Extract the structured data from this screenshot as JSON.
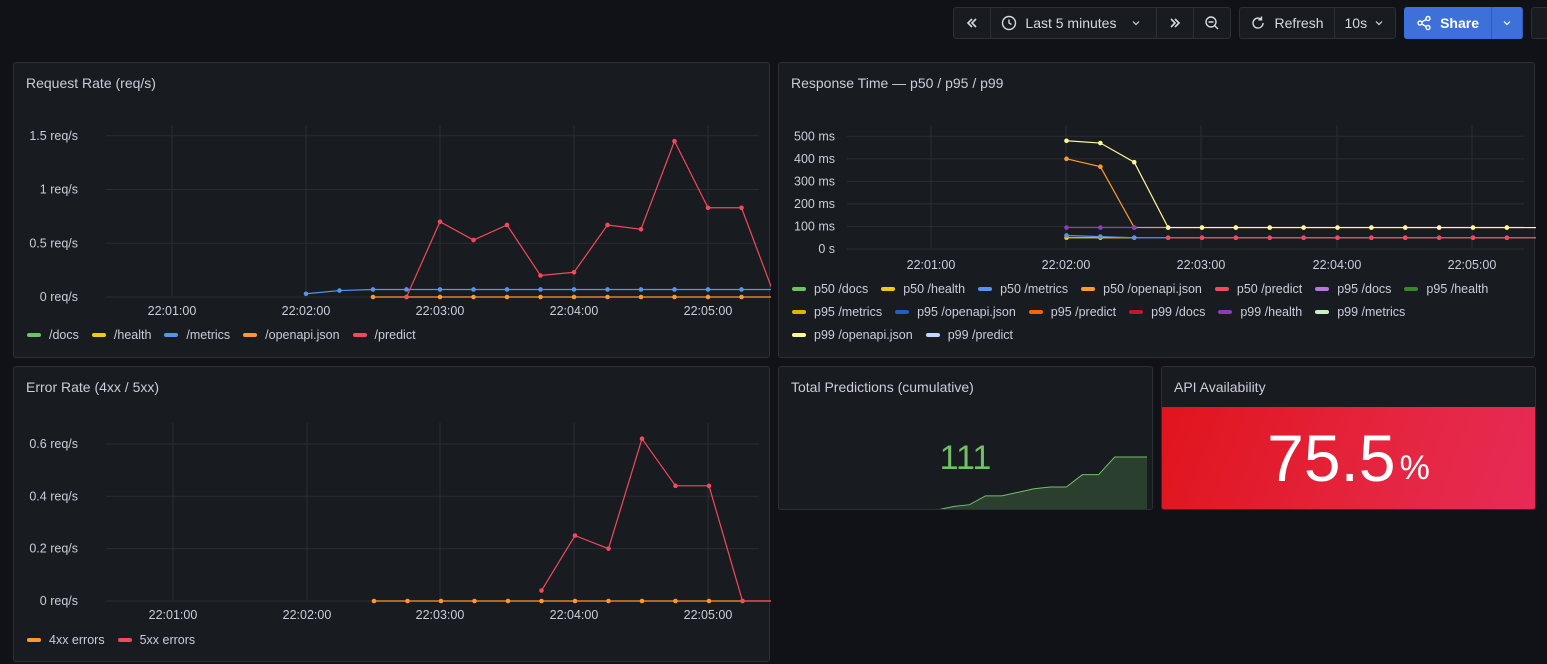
{
  "toolbar": {
    "time_range": "Last 5 minutes",
    "refresh_label": "Refresh",
    "refresh_interval": "10s",
    "share_label": "Share"
  },
  "panels": {
    "request_rate": {
      "title": "Request Rate (req/s)",
      "legend": [
        {
          "label": "/docs",
          "color": "#73bf69"
        },
        {
          "label": "/health",
          "color": "#f2cc0c"
        },
        {
          "label": "/metrics",
          "color": "#5794f2"
        },
        {
          "label": "/openapi.json",
          "color": "#ff9830"
        },
        {
          "label": "/predict",
          "color": "#f2495c"
        }
      ]
    },
    "response_time": {
      "title": "Response Time — p50 / p95 / p99",
      "legend": [
        {
          "label": "p50 /docs",
          "color": "#73bf69"
        },
        {
          "label": "p50 /health",
          "color": "#f2cc0c"
        },
        {
          "label": "p50 /metrics",
          "color": "#5794f2"
        },
        {
          "label": "p50 /openapi.json",
          "color": "#ff9830"
        },
        {
          "label": "p50 /predict",
          "color": "#f2495c"
        },
        {
          "label": "p95 /docs",
          "color": "#b877d9"
        },
        {
          "label": "p95 /health",
          "color": "#37872d"
        },
        {
          "label": "p95 /metrics",
          "color": "#e0b400"
        },
        {
          "label": "p95 /openapi.json",
          "color": "#1f60c4"
        },
        {
          "label": "p95 /predict",
          "color": "#fa6400"
        },
        {
          "label": "p99 /docs",
          "color": "#c4162a"
        },
        {
          "label": "p99 /health",
          "color": "#8f3bb8"
        },
        {
          "label": "p99 /metrics",
          "color": "#c8f2c2"
        },
        {
          "label": "p99 /openapi.json",
          "color": "#fff899"
        },
        {
          "label": "p99 /predict",
          "color": "#c0d8ff"
        }
      ]
    },
    "error_rate": {
      "title": "Error Rate (4xx / 5xx)",
      "legend": [
        {
          "label": "4xx errors",
          "color": "#ff9830"
        },
        {
          "label": "5xx errors",
          "color": "#f2495c"
        }
      ]
    },
    "total_predictions": {
      "title": "Total Predictions (cumulative)",
      "value": "111"
    },
    "availability": {
      "title": "API Availability",
      "value": "75.5",
      "unit": "%"
    }
  },
  "chart_data": [
    {
      "type": "line",
      "title": "Request Rate (req/s)",
      "x_ticks": [
        "22:01:00",
        "22:02:00",
        "22:03:00",
        "22:04:00",
        "22:05:00"
      ],
      "y_ticks": [
        "0 req/s",
        "0.5 req/s",
        "1 req/s",
        "1.5 req/s"
      ],
      "ylim": [
        0,
        1.6
      ],
      "x_range_seconds": [
        0,
        330
      ],
      "series": [
        {
          "name": "/metrics",
          "color": "#5794f2",
          "x": [
            120,
            135,
            150,
            165,
            180,
            195,
            210,
            225,
            240,
            255,
            270,
            285,
            300,
            315,
            330
          ],
          "values": [
            0.03,
            0.06,
            0.07,
            0.07,
            0.07,
            0.07,
            0.07,
            0.07,
            0.07,
            0.07,
            0.07,
            0.07,
            0.07,
            0.07,
            0.07
          ]
        },
        {
          "name": "/openapi.json",
          "color": "#ff9830",
          "x": [
            150,
            165,
            180,
            195,
            210,
            225,
            240,
            255,
            270,
            285,
            300,
            315,
            330
          ],
          "values": [
            0,
            0,
            0,
            0,
            0,
            0,
            0,
            0,
            0,
            0,
            0,
            0,
            0
          ]
        },
        {
          "name": "/predict",
          "color": "#f2495c",
          "x": [
            165,
            180,
            195,
            210,
            225,
            240,
            255,
            270,
            285,
            300,
            315,
            330
          ],
          "values": [
            0,
            0.7,
            0.53,
            0.67,
            0.2,
            0.23,
            0.67,
            0.63,
            1.45,
            0.83,
            0.83,
            0
          ]
        }
      ]
    },
    {
      "type": "line",
      "title": "Response Time — p50 / p95 / p99",
      "x_ticks": [
        "22:01:00",
        "22:02:00",
        "22:03:00",
        "22:04:00",
        "22:05:00"
      ],
      "y_ticks": [
        "0 s",
        "100 ms",
        "200 ms",
        "300 ms",
        "400 ms",
        "500 ms"
      ],
      "ylim": [
        0,
        550
      ],
      "x_range_seconds": [
        0,
        340
      ],
      "series": [
        {
          "name": "p50 /health",
          "color": "#f2cc0c",
          "x": [
            120,
            135,
            150
          ],
          "values": [
            50,
            50,
            50
          ]
        },
        {
          "name": "p50 /metrics",
          "color": "#5794f2",
          "x": [
            120,
            135,
            150,
            165,
            180,
            195,
            210,
            225,
            240,
            255,
            270,
            285,
            300,
            315,
            330
          ],
          "values": [
            60,
            55,
            50,
            50,
            50,
            50,
            50,
            50,
            50,
            50,
            50,
            50,
            50,
            50,
            50
          ]
        },
        {
          "name": "p50 /predict",
          "color": "#f2495c",
          "x": [
            165,
            180,
            195,
            210,
            225,
            240,
            255,
            270,
            285,
            300,
            315,
            330
          ],
          "values": [
            50,
            50,
            50,
            50,
            50,
            50,
            50,
            50,
            50,
            50,
            50,
            50
          ]
        },
        {
          "name": "p95 /openapi.json",
          "color": "#ff9830",
          "x": [
            120,
            135,
            150,
            165,
            180,
            195,
            210,
            225,
            240,
            255,
            270,
            285,
            300,
            315,
            330
          ],
          "values": [
            400,
            365,
            95,
            95,
            95,
            95,
            95,
            95,
            95,
            95,
            95,
            95,
            95,
            95,
            95
          ]
        },
        {
          "name": "p99 /health",
          "color": "#8f3bb8",
          "x": [
            120,
            135,
            150
          ],
          "values": [
            95,
            95,
            95
          ]
        },
        {
          "name": "p99 /openapi.json",
          "color": "#fff899",
          "x": [
            120,
            135,
            150,
            165,
            180,
            195,
            210,
            225,
            240,
            255,
            270,
            285,
            300,
            315,
            330
          ],
          "values": [
            480,
            470,
            385,
            95,
            95,
            95,
            95,
            95,
            95,
            95,
            95,
            95,
            95,
            95,
            95
          ]
        }
      ]
    },
    {
      "type": "line",
      "title": "Error Rate (4xx / 5xx)",
      "x_ticks": [
        "22:01:00",
        "22:02:00",
        "22:03:00",
        "22:04:00",
        "22:05:00"
      ],
      "y_ticks": [
        "0 req/s",
        "0.2 req/s",
        "0.4 req/s",
        "0.6 req/s"
      ],
      "ylim": [
        0,
        0.68
      ],
      "x_range_seconds": [
        0,
        330
      ],
      "series": [
        {
          "name": "4xx errors",
          "color": "#ff9830",
          "x": [
            150,
            165,
            180,
            195,
            210,
            225,
            240,
            255,
            270,
            285,
            300,
            315,
            330
          ],
          "values": [
            0,
            0,
            0,
            0,
            0,
            0,
            0,
            0,
            0,
            0,
            0,
            0,
            0
          ]
        },
        {
          "name": "5xx errors",
          "color": "#f2495c",
          "x": [
            225,
            240,
            255,
            270,
            285,
            300,
            315,
            330
          ],
          "values": [
            0.04,
            0.25,
            0.2,
            0.62,
            0.44,
            0.44,
            0,
            0
          ]
        }
      ]
    },
    {
      "type": "area",
      "title": "Total Predictions (cumulative)",
      "color": "#73bf69",
      "values": [
        0,
        0,
        2,
        3,
        8,
        8,
        10,
        12,
        13,
        13,
        20,
        20,
        30,
        30,
        30
      ]
    }
  ]
}
